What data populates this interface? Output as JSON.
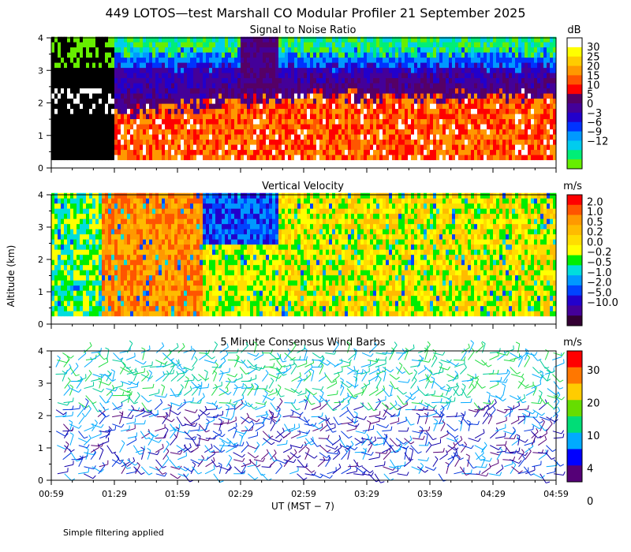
{
  "figure": {
    "title": "449 LOTOS—test Marshall CO Modular Profiler 21 September 2025",
    "ylabel": "Altitude (km)",
    "xlabel": "UT  (MST − 7)",
    "footnote": "Simple filtering applied",
    "x_ticks": [
      "00:59",
      "01:29",
      "01:59",
      "02:29",
      "02:59",
      "03:29",
      "03:59",
      "04:29",
      "04:59"
    ],
    "y_ticks": [
      "0",
      "1",
      "2",
      "3",
      "4"
    ]
  },
  "chart_data": [
    {
      "type": "heatmap",
      "title": "Signal to Noise Ratio",
      "colorbar_unit": "dB",
      "colorbar_labels": [
        "30",
        "25",
        "20",
        "15",
        "10",
        "5",
        "0",
        "−3",
        "−6",
        "−9",
        "−12"
      ],
      "colorbar_colors": [
        "#ffffff",
        "#ffff00",
        "#ffcc00",
        "#ff9900",
        "#ff5500",
        "#ff0000",
        "#550066",
        "#440099",
        "#2200cc",
        "#0033ff",
        "#0099ff",
        "#00ccee",
        "#00ee77",
        "#66ee00"
      ],
      "x_range": [
        "00:59",
        "04:59"
      ],
      "ylim": [
        0,
        4
      ]
    },
    {
      "type": "heatmap",
      "title": "Vertical Velocity",
      "colorbar_unit": "m/s",
      "colorbar_labels": [
        "2.0",
        "1.0",
        "0.5",
        "0.2",
        "0.0",
        "−0.2",
        "−0.5",
        "−1.0",
        "−2.0",
        "−5.0",
        "−10.0"
      ],
      "colorbar_colors": [
        "#ff0000",
        "#ff5500",
        "#ff9900",
        "#ffbb00",
        "#ffdd00",
        "#ffff00",
        "#00ee00",
        "#00dddd",
        "#0099ff",
        "#0044ff",
        "#2200cc",
        "#440099",
        "#330033"
      ],
      "x_range": [
        "00:59",
        "04:59"
      ],
      "ylim": [
        0,
        4
      ]
    },
    {
      "type": "scatter",
      "title": "5 Minute Consensus Wind Barbs",
      "colorbar_unit": "m/s",
      "colorbar_labels": [
        "30",
        "20",
        "10",
        "4",
        "0"
      ],
      "colorbar_colors": [
        "#ff0000",
        "#ff7700",
        "#ffcc00",
        "#66dd00",
        "#00dd77",
        "#00aaff",
        "#0000ff",
        "#550077"
      ],
      "x_range": [
        "00:59",
        "04:59"
      ],
      "ylim": [
        0,
        4
      ]
    }
  ]
}
